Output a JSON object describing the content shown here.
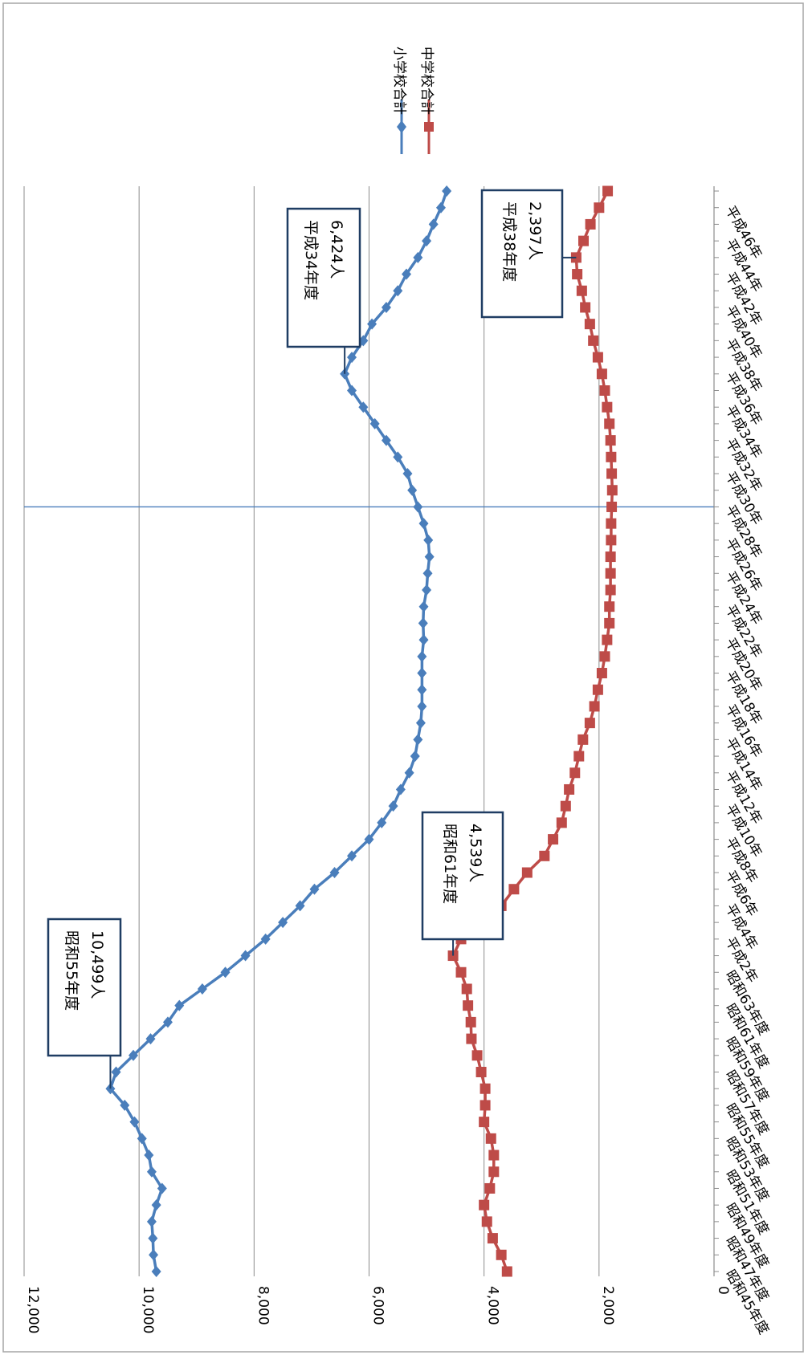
{
  "chart_data": {
    "type": "line",
    "title": "",
    "xlabel": "",
    "ylabel": "",
    "ylim": [
      0,
      12000
    ],
    "y_ticks": [
      "0",
      "2,000",
      "4,000",
      "6,000",
      "8,000",
      "10,000",
      "12,000"
    ],
    "y_tick_values": [
      0,
      2000,
      4000,
      6000,
      8000,
      10000,
      12000
    ],
    "x_labels_visible": [
      "昭和45年度",
      "昭和47年度",
      "昭和49年度",
      "昭和51年度",
      "昭和53年度",
      "昭和55年度",
      "昭和57年度",
      "昭和59年度",
      "昭和61年度",
      "昭和63年度",
      "平成2年",
      "平成4年",
      "平成6年",
      "平成8年",
      "平成10年",
      "平成12年",
      "平成14年",
      "平成16年",
      "平成18年",
      "平成20年",
      "平成22年",
      "平成24年",
      "平成26年",
      "平成28年",
      "平成30年",
      "平成32年",
      "平成34年",
      "平成36年",
      "平成38年",
      "平成40年",
      "平成42年",
      "平成44年",
      "平成46年"
    ],
    "n_points": 66,
    "reference_index": 46,
    "grid": true,
    "legend_position": "top-right",
    "series": [
      {
        "name": "小学校合計",
        "color": "#4a7ebb",
        "marker": "diamond",
        "values": [
          9700,
          9750,
          9760,
          9780,
          9700,
          9600,
          9780,
          9830,
          9950,
          10080,
          10250,
          10499,
          10400,
          10100,
          9800,
          9500,
          9300,
          8900,
          8500,
          8150,
          7800,
          7500,
          7200,
          6950,
          6600,
          6300,
          6000,
          5780,
          5580,
          5450,
          5300,
          5200,
          5150,
          5100,
          5080,
          5080,
          5080,
          5080,
          5050,
          5060,
          5050,
          5000,
          4980,
          4950,
          4970,
          5050,
          5150,
          5250,
          5330,
          5500,
          5700,
          5900,
          6100,
          6300,
          6424,
          6300,
          6100,
          5950,
          5700,
          5500,
          5350,
          5150,
          5000,
          4880,
          4750,
          4650
        ]
      },
      {
        "name": "中学校合計",
        "color": "#be4b48",
        "marker": "square",
        "values": [
          3600,
          3700,
          3850,
          3950,
          4000,
          3900,
          3830,
          3830,
          3880,
          4000,
          3980,
          3980,
          4050,
          4120,
          4220,
          4230,
          4280,
          4300,
          4400,
          4539,
          4400,
          4100,
          3700,
          3480,
          3250,
          2950,
          2800,
          2650,
          2580,
          2520,
          2420,
          2350,
          2280,
          2160,
          2080,
          2020,
          1950,
          1900,
          1860,
          1820,
          1820,
          1800,
          1800,
          1800,
          1790,
          1790,
          1780,
          1770,
          1780,
          1790,
          1800,
          1820,
          1860,
          1900,
          1950,
          2020,
          2100,
          2160,
          2240,
          2300,
          2380,
          2397,
          2270,
          2150,
          2000,
          1850
        ]
      }
    ],
    "annotations": [
      {
        "line1": "昭和55年度",
        "line2": "10,499人",
        "series_index": 0,
        "point_index": 11
      },
      {
        "line1": "平成34年度",
        "line2": "6,424人",
        "series_index": 0,
        "point_index": 54
      },
      {
        "line1": "昭和61年度",
        "line2": "4,539人",
        "series_index": 1,
        "point_index": 19
      },
      {
        "line1": "平成38年度",
        "line2": "2,397人",
        "series_index": 1,
        "point_index": 61
      }
    ]
  }
}
